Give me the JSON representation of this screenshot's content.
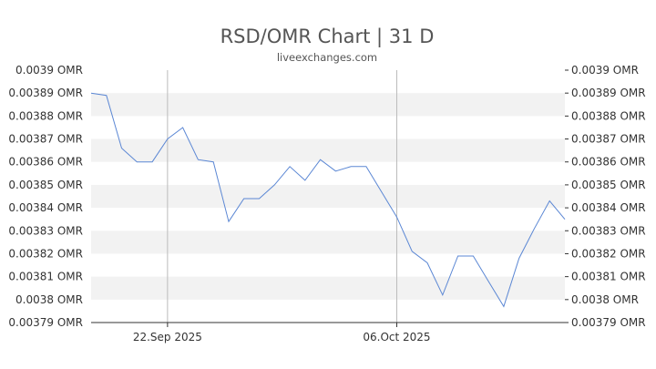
{
  "chart_data": {
    "type": "line",
    "title": "RSD/OMR Chart | 31 D",
    "subtitle": "liveexchanges.com",
    "xlabel": "",
    "ylabel": "",
    "unit": "OMR",
    "ylim": [
      0.00379,
      0.0039
    ],
    "y_ticks": [
      {
        "value": 0.0039,
        "label": "0.0039 OMR"
      },
      {
        "value": 0.00389,
        "label": "0.00389 OMR"
      },
      {
        "value": 0.00388,
        "label": "0.00388 OMR"
      },
      {
        "value": 0.00387,
        "label": "0.00387 OMR"
      },
      {
        "value": 0.00386,
        "label": "0.00386 OMR"
      },
      {
        "value": 0.00385,
        "label": "0.00385 OMR"
      },
      {
        "value": 0.00384,
        "label": "0.00384 OMR"
      },
      {
        "value": 0.00383,
        "label": "0.00383 OMR"
      },
      {
        "value": 0.00382,
        "label": "0.00382 OMR"
      },
      {
        "value": 0.00381,
        "label": "0.00381 OMR"
      },
      {
        "value": 0.0038,
        "label": "0.0038 OMR"
      },
      {
        "value": 0.00379,
        "label": "0.00379 OMR"
      }
    ],
    "x_ticks": [
      {
        "index": 5,
        "label": "22.Sep 2025"
      },
      {
        "index": 20,
        "label": "06.Oct 2025"
      }
    ],
    "grid": "alternating horizontal bands, vertical lines at date ticks",
    "colors": {
      "line": "#5b87d4",
      "band": "#f2f2f2",
      "axis": "#333333",
      "gridline": "#bbbbbb"
    },
    "series": [
      {
        "values": [
          0.00389,
          0.003889,
          0.003866,
          0.00386,
          0.00386,
          0.00387,
          0.003875,
          0.003861,
          0.00386,
          0.003834,
          0.003844,
          0.003844,
          0.00385,
          0.003858,
          0.003852,
          0.003861,
          0.003856,
          0.003858,
          0.003858,
          0.003847,
          0.003836,
          0.003821,
          0.003816,
          0.003802,
          0.003819,
          0.003819,
          0.003808,
          0.003797,
          0.003818,
          0.003831,
          0.003843,
          0.003835
        ]
      }
    ]
  }
}
